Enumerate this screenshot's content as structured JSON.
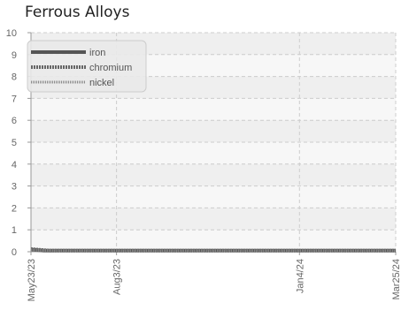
{
  "chart_data": {
    "type": "line",
    "title": "Ferrous Alloys",
    "xlabel": "",
    "ylabel": "",
    "x_tick_labels": [
      "May23/23",
      "Aug3/23",
      "Jan4/24",
      "Mar25/24"
    ],
    "x_ticks": [
      "2023-05-23",
      "2023-08-03",
      "2024-01-04",
      "2024-03-25"
    ],
    "y_ticks": [
      0,
      1,
      2,
      3,
      4,
      5,
      6,
      7,
      8,
      9,
      10
    ],
    "ylim": [
      0,
      10
    ],
    "grid": true,
    "legend_position": "top-left",
    "series": [
      {
        "name": "iron",
        "color": "#555555",
        "x": [
          "2023-05-23",
          "2023-06-03",
          "2024-03-25"
        ],
        "values": [
          0.1,
          0.05,
          0.05
        ]
      },
      {
        "name": "chromium",
        "color": "#666666",
        "x": [
          "2023-05-23",
          "2023-06-08",
          "2024-03-25"
        ],
        "values": [
          0.12,
          0.05,
          0.05
        ]
      },
      {
        "name": "nickel",
        "color": "#888888",
        "x": [
          "2023-05-23",
          "2023-06-14",
          "2024-03-25"
        ],
        "values": [
          0.08,
          0.04,
          0.04
        ]
      }
    ]
  }
}
